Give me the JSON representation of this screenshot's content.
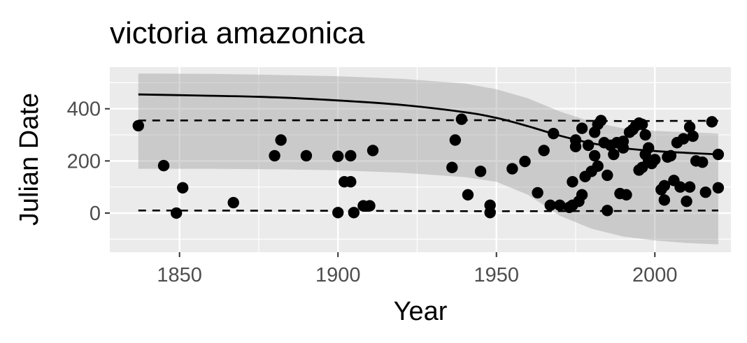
{
  "chart_data": {
    "type": "scatter",
    "title": "victoria amazonica",
    "xlabel": "Year",
    "ylabel": "Julian Date",
    "xlim": [
      1828,
      2024
    ],
    "ylim": [
      -150,
      560
    ],
    "x_ticks": [
      1850,
      1900,
      1950,
      2000
    ],
    "y_ticks": [
      0,
      200,
      400
    ],
    "grid": true,
    "legend": "none",
    "points": [
      {
        "x": 1837,
        "y": 335
      },
      {
        "x": 1845,
        "y": 182
      },
      {
        "x": 1849,
        "y": 0
      },
      {
        "x": 1851,
        "y": 97
      },
      {
        "x": 1867,
        "y": 40
      },
      {
        "x": 1880,
        "y": 220
      },
      {
        "x": 1882,
        "y": 280
      },
      {
        "x": 1890,
        "y": 220
      },
      {
        "x": 1900,
        "y": 218
      },
      {
        "x": 1900,
        "y": 2
      },
      {
        "x": 1902,
        "y": 120
      },
      {
        "x": 1904,
        "y": 120
      },
      {
        "x": 1904,
        "y": 220
      },
      {
        "x": 1905,
        "y": 2
      },
      {
        "x": 1908,
        "y": 28
      },
      {
        "x": 1910,
        "y": 28
      },
      {
        "x": 1911,
        "y": 240
      },
      {
        "x": 1936,
        "y": 175
      },
      {
        "x": 1937,
        "y": 280
      },
      {
        "x": 1939,
        "y": 360
      },
      {
        "x": 1941,
        "y": 70
      },
      {
        "x": 1945,
        "y": 160
      },
      {
        "x": 1948,
        "y": 30
      },
      {
        "x": 1948,
        "y": 2
      },
      {
        "x": 1955,
        "y": 170
      },
      {
        "x": 1959,
        "y": 198
      },
      {
        "x": 1963,
        "y": 78
      },
      {
        "x": 1965,
        "y": 240
      },
      {
        "x": 1967,
        "y": 30
      },
      {
        "x": 1968,
        "y": 305
      },
      {
        "x": 1970,
        "y": 30
      },
      {
        "x": 1973,
        "y": 22
      },
      {
        "x": 1974,
        "y": 30
      },
      {
        "x": 1974,
        "y": 120
      },
      {
        "x": 1975,
        "y": 255
      },
      {
        "x": 1975,
        "y": 280
      },
      {
        "x": 1976,
        "y": 45
      },
      {
        "x": 1977,
        "y": 325
      },
      {
        "x": 1977,
        "y": 70
      },
      {
        "x": 1978,
        "y": 140
      },
      {
        "x": 1979,
        "y": 260
      },
      {
        "x": 1980,
        "y": 160
      },
      {
        "x": 1981,
        "y": 310
      },
      {
        "x": 1981,
        "y": 220
      },
      {
        "x": 1982,
        "y": 180
      },
      {
        "x": 1982,
        "y": 340
      },
      {
        "x": 1983,
        "y": 355
      },
      {
        "x": 1984,
        "y": 270
      },
      {
        "x": 1985,
        "y": 145
      },
      {
        "x": 1985,
        "y": 10
      },
      {
        "x": 1986,
        "y": 260
      },
      {
        "x": 1987,
        "y": 225
      },
      {
        "x": 1988,
        "y": 270
      },
      {
        "x": 1989,
        "y": 75
      },
      {
        "x": 1990,
        "y": 275
      },
      {
        "x": 1990,
        "y": 250
      },
      {
        "x": 1991,
        "y": 70
      },
      {
        "x": 1992,
        "y": 310
      },
      {
        "x": 1993,
        "y": 320
      },
      {
        "x": 1994,
        "y": 335
      },
      {
        "x": 1995,
        "y": 345
      },
      {
        "x": 1995,
        "y": 165
      },
      {
        "x": 1996,
        "y": 175
      },
      {
        "x": 1996,
        "y": 340
      },
      {
        "x": 1997,
        "y": 225
      },
      {
        "x": 1997,
        "y": 300
      },
      {
        "x": 1998,
        "y": 200
      },
      {
        "x": 1998,
        "y": 250
      },
      {
        "x": 1999,
        "y": 190
      },
      {
        "x": 2000,
        "y": 205
      },
      {
        "x": 2002,
        "y": 90
      },
      {
        "x": 2003,
        "y": 50
      },
      {
        "x": 2003,
        "y": 105
      },
      {
        "x": 2004,
        "y": 215
      },
      {
        "x": 2005,
        "y": 220
      },
      {
        "x": 2006,
        "y": 125
      },
      {
        "x": 2007,
        "y": 270
      },
      {
        "x": 2008,
        "y": 100
      },
      {
        "x": 2009,
        "y": 285
      },
      {
        "x": 2010,
        "y": 45
      },
      {
        "x": 2011,
        "y": 100
      },
      {
        "x": 2011,
        "y": 330
      },
      {
        "x": 2012,
        "y": 295
      },
      {
        "x": 2013,
        "y": 200
      },
      {
        "x": 2015,
        "y": 195
      },
      {
        "x": 2016,
        "y": 80
      },
      {
        "x": 2018,
        "y": 350
      },
      {
        "x": 2020,
        "y": 225
      },
      {
        "x": 2020,
        "y": 97
      }
    ],
    "fit_line": [
      {
        "x": 1837,
        "y": 455
      },
      {
        "x": 1860,
        "y": 450
      },
      {
        "x": 1880,
        "y": 444
      },
      {
        "x": 1900,
        "y": 432
      },
      {
        "x": 1920,
        "y": 415
      },
      {
        "x": 1940,
        "y": 387
      },
      {
        "x": 1950,
        "y": 365
      },
      {
        "x": 1960,
        "y": 333
      },
      {
        "x": 1970,
        "y": 297
      },
      {
        "x": 1980,
        "y": 268
      },
      {
        "x": 1990,
        "y": 249
      },
      {
        "x": 2000,
        "y": 238
      },
      {
        "x": 2010,
        "y": 231
      },
      {
        "x": 2020,
        "y": 225
      }
    ],
    "confidence_band": [
      {
        "x": 1837,
        "lower": 170,
        "upper": 535
      },
      {
        "x": 1860,
        "lower": 170,
        "upper": 534
      },
      {
        "x": 1880,
        "lower": 168,
        "upper": 530
      },
      {
        "x": 1900,
        "lower": 164,
        "upper": 525
      },
      {
        "x": 1920,
        "lower": 155,
        "upper": 515
      },
      {
        "x": 1940,
        "lower": 138,
        "upper": 497
      },
      {
        "x": 1950,
        "lower": 120,
        "upper": 475
      },
      {
        "x": 1960,
        "lower": 70,
        "upper": 440
      },
      {
        "x": 1970,
        "lower": -10,
        "upper": 390
      },
      {
        "x": 1980,
        "lower": -60,
        "upper": 350
      },
      {
        "x": 1990,
        "lower": -90,
        "upper": 325
      },
      {
        "x": 2000,
        "lower": -105,
        "upper": 315
      },
      {
        "x": 2010,
        "lower": -115,
        "upper": 310
      },
      {
        "x": 2020,
        "lower": -120,
        "upper": 305
      }
    ],
    "reference_lines": [
      [
        {
          "x": 1837,
          "y": 355
        },
        {
          "x": 1900,
          "y": 356
        },
        {
          "x": 1950,
          "y": 356
        },
        {
          "x": 1990,
          "y": 353
        },
        {
          "x": 2020,
          "y": 354
        }
      ],
      [
        {
          "x": 1837,
          "y": 10
        },
        {
          "x": 1900,
          "y": 9
        },
        {
          "x": 1950,
          "y": 7
        },
        {
          "x": 1990,
          "y": 8
        },
        {
          "x": 2020,
          "y": 10
        }
      ]
    ]
  },
  "colors": {
    "panel_background": "#ebebeb",
    "grid_major": "#ffffff",
    "band_fill": "#999999",
    "points": "#000000",
    "lines": "#000000",
    "tick_text": "#4d4d4d"
  }
}
